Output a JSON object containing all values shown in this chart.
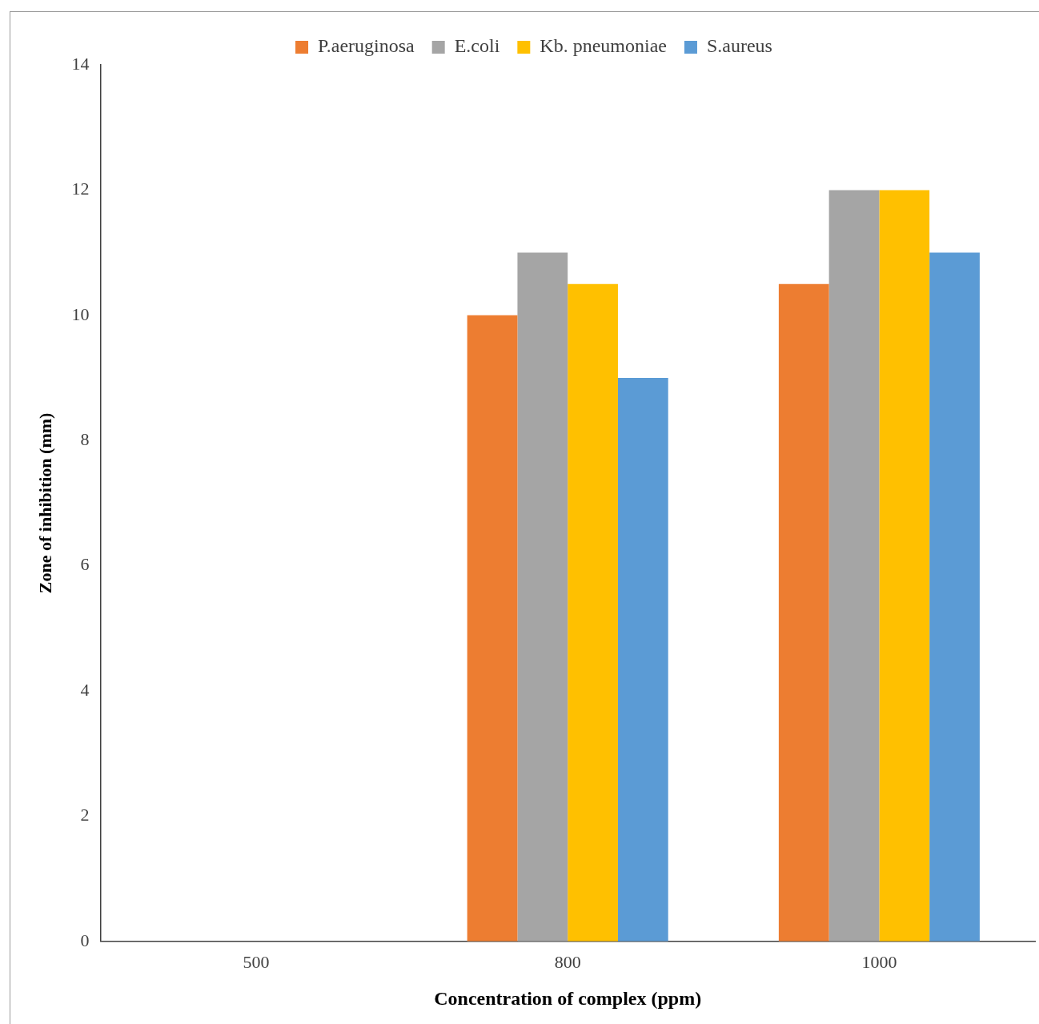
{
  "chart_data": {
    "type": "bar",
    "xlabel": "Concentration of complex (ppm)",
    "ylabel": "Zone of inhibition (mm)",
    "categories": [
      "500",
      "800",
      "1000"
    ],
    "series": [
      {
        "name": "P.aeruginosa",
        "color": "#ed7d31",
        "values": [
          0,
          10,
          10.5
        ]
      },
      {
        "name": "E.coli",
        "color": "#a5a5a5",
        "values": [
          0,
          11,
          12
        ]
      },
      {
        "name": "Kb. pneumoniae",
        "color": "#ffc000",
        "values": [
          0,
          10.5,
          12
        ]
      },
      {
        "name": "S.aureus",
        "color": "#5b9bd5",
        "values": [
          0,
          9,
          11
        ]
      }
    ],
    "ylim": [
      0,
      14
    ],
    "yticks": [
      0,
      2,
      4,
      6,
      8,
      10,
      12,
      14
    ],
    "grid": false,
    "legend": "top"
  }
}
